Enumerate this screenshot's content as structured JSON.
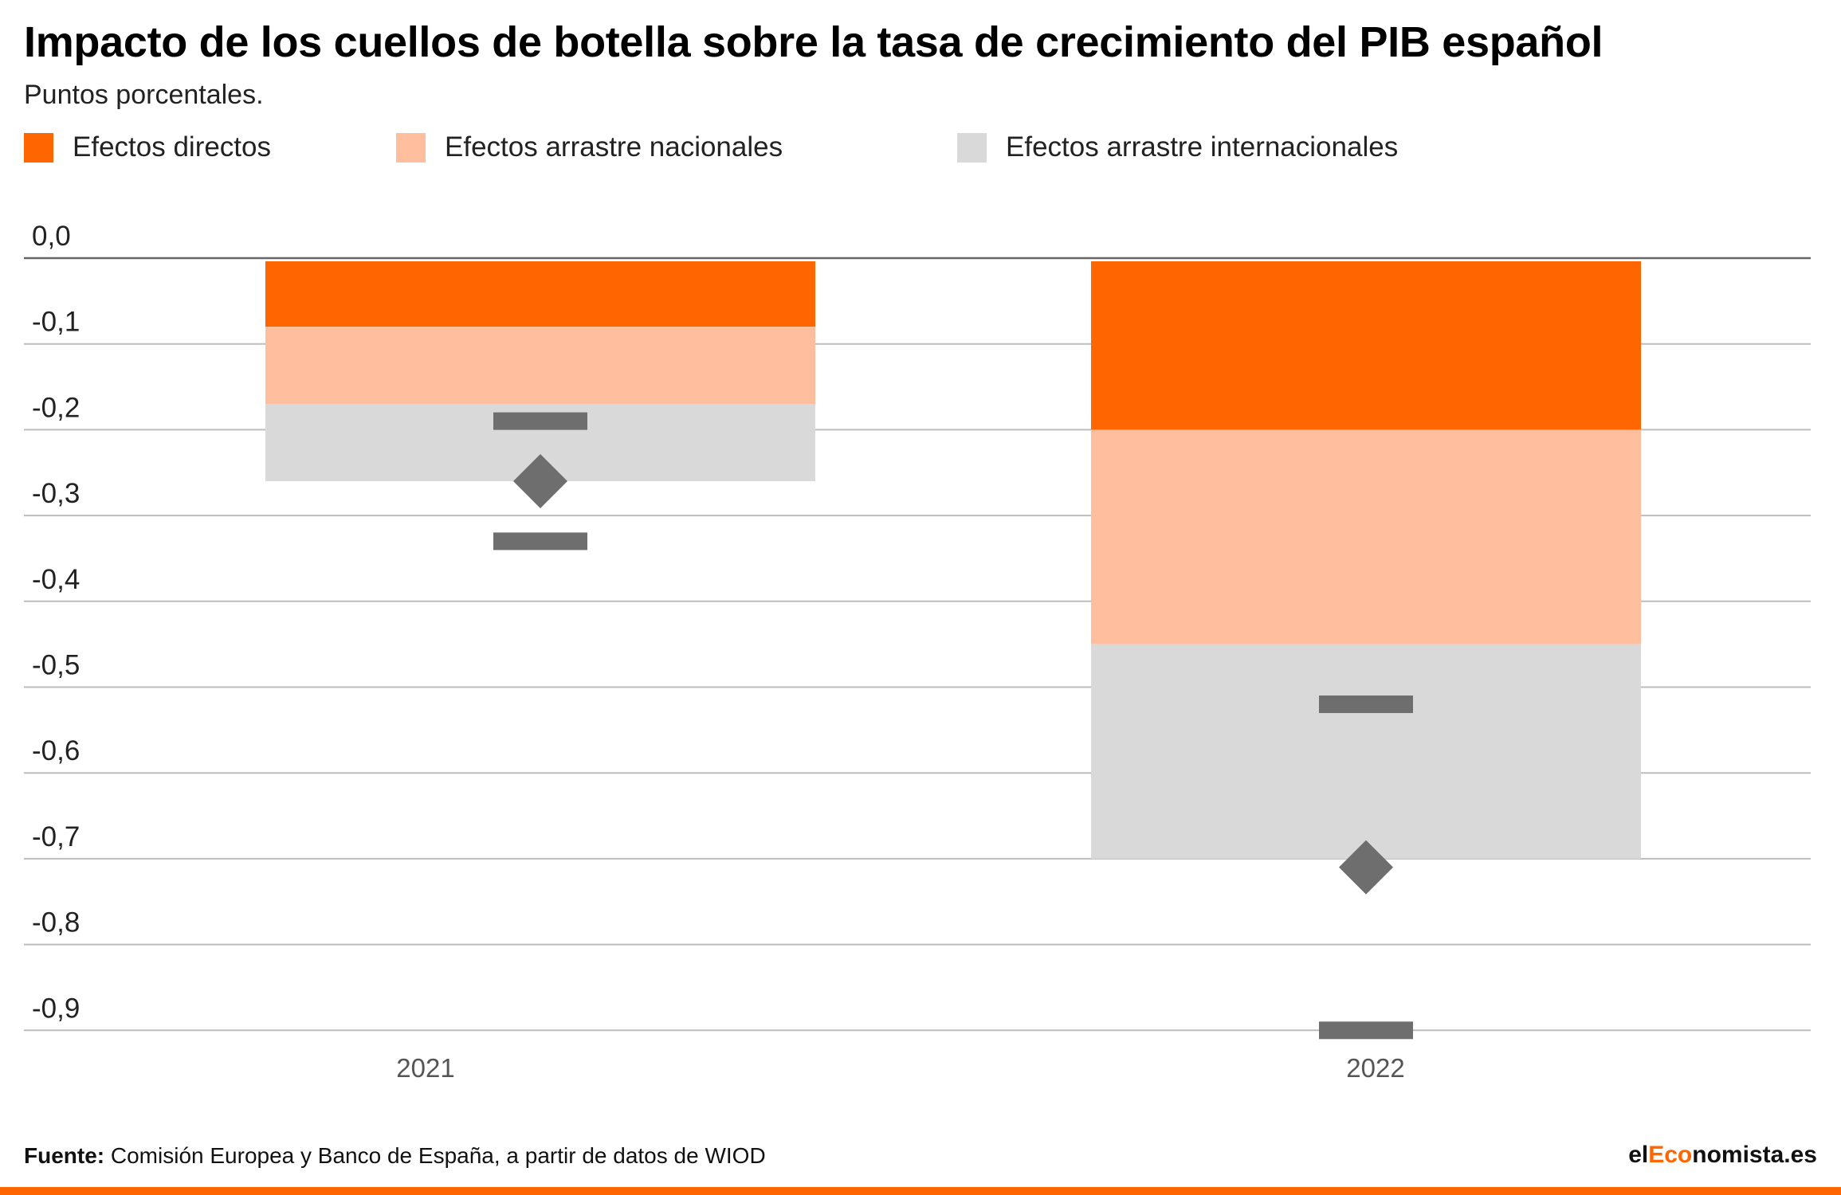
{
  "header": {
    "title": "Impacto de los cuellos de botella sobre la tasa de crecimiento del PIB español",
    "subtitle": "Puntos porcentales."
  },
  "legend": [
    {
      "label": "Efectos directos",
      "color": "#ff6600"
    },
    {
      "label": "Efectos arrastre nacionales",
      "color": "#ffbf9e"
    },
    {
      "label": "Efectos arrastre internacionales",
      "color": "#d9d9d9"
    }
  ],
  "chart_data": {
    "type": "bar",
    "stacked": true,
    "categories": [
      "2021",
      "2022"
    ],
    "series": [
      {
        "name": "Efectos directos",
        "color": "#ff6600",
        "values": [
          -0.08,
          -0.2
        ]
      },
      {
        "name": "Efectos arrastre nacionales",
        "color": "#ffbf9e",
        "values": [
          -0.09,
          -0.25
        ]
      },
      {
        "name": "Efectos arrastre internacionales",
        "color": "#d9d9d9",
        "values": [
          -0.09,
          -0.25
        ]
      }
    ],
    "total_markers": [
      -0.26,
      -0.71
    ],
    "error_bars": [
      {
        "high": -0.19,
        "low": -0.33
      },
      {
        "high": -0.52,
        "low": -0.9
      }
    ],
    "ylim": [
      -0.9,
      0.0
    ],
    "yticks": [
      "0,0",
      "-0,1",
      "-0,2",
      "-0,3",
      "-0,4",
      "-0,5",
      "-0,6",
      "-0,7",
      "-0,8",
      "-0,9"
    ],
    "marker_color": "#6e6e6e",
    "grid": true
  },
  "footer": {
    "source_label": "Fuente:",
    "source_text": " Comisión Europea y Banco de España, a partir de datos de WIOD",
    "brand_prefix": "el",
    "brand_accent": "Eco",
    "brand_suffix": "nomista.es",
    "accent_color": "#ff6600"
  }
}
